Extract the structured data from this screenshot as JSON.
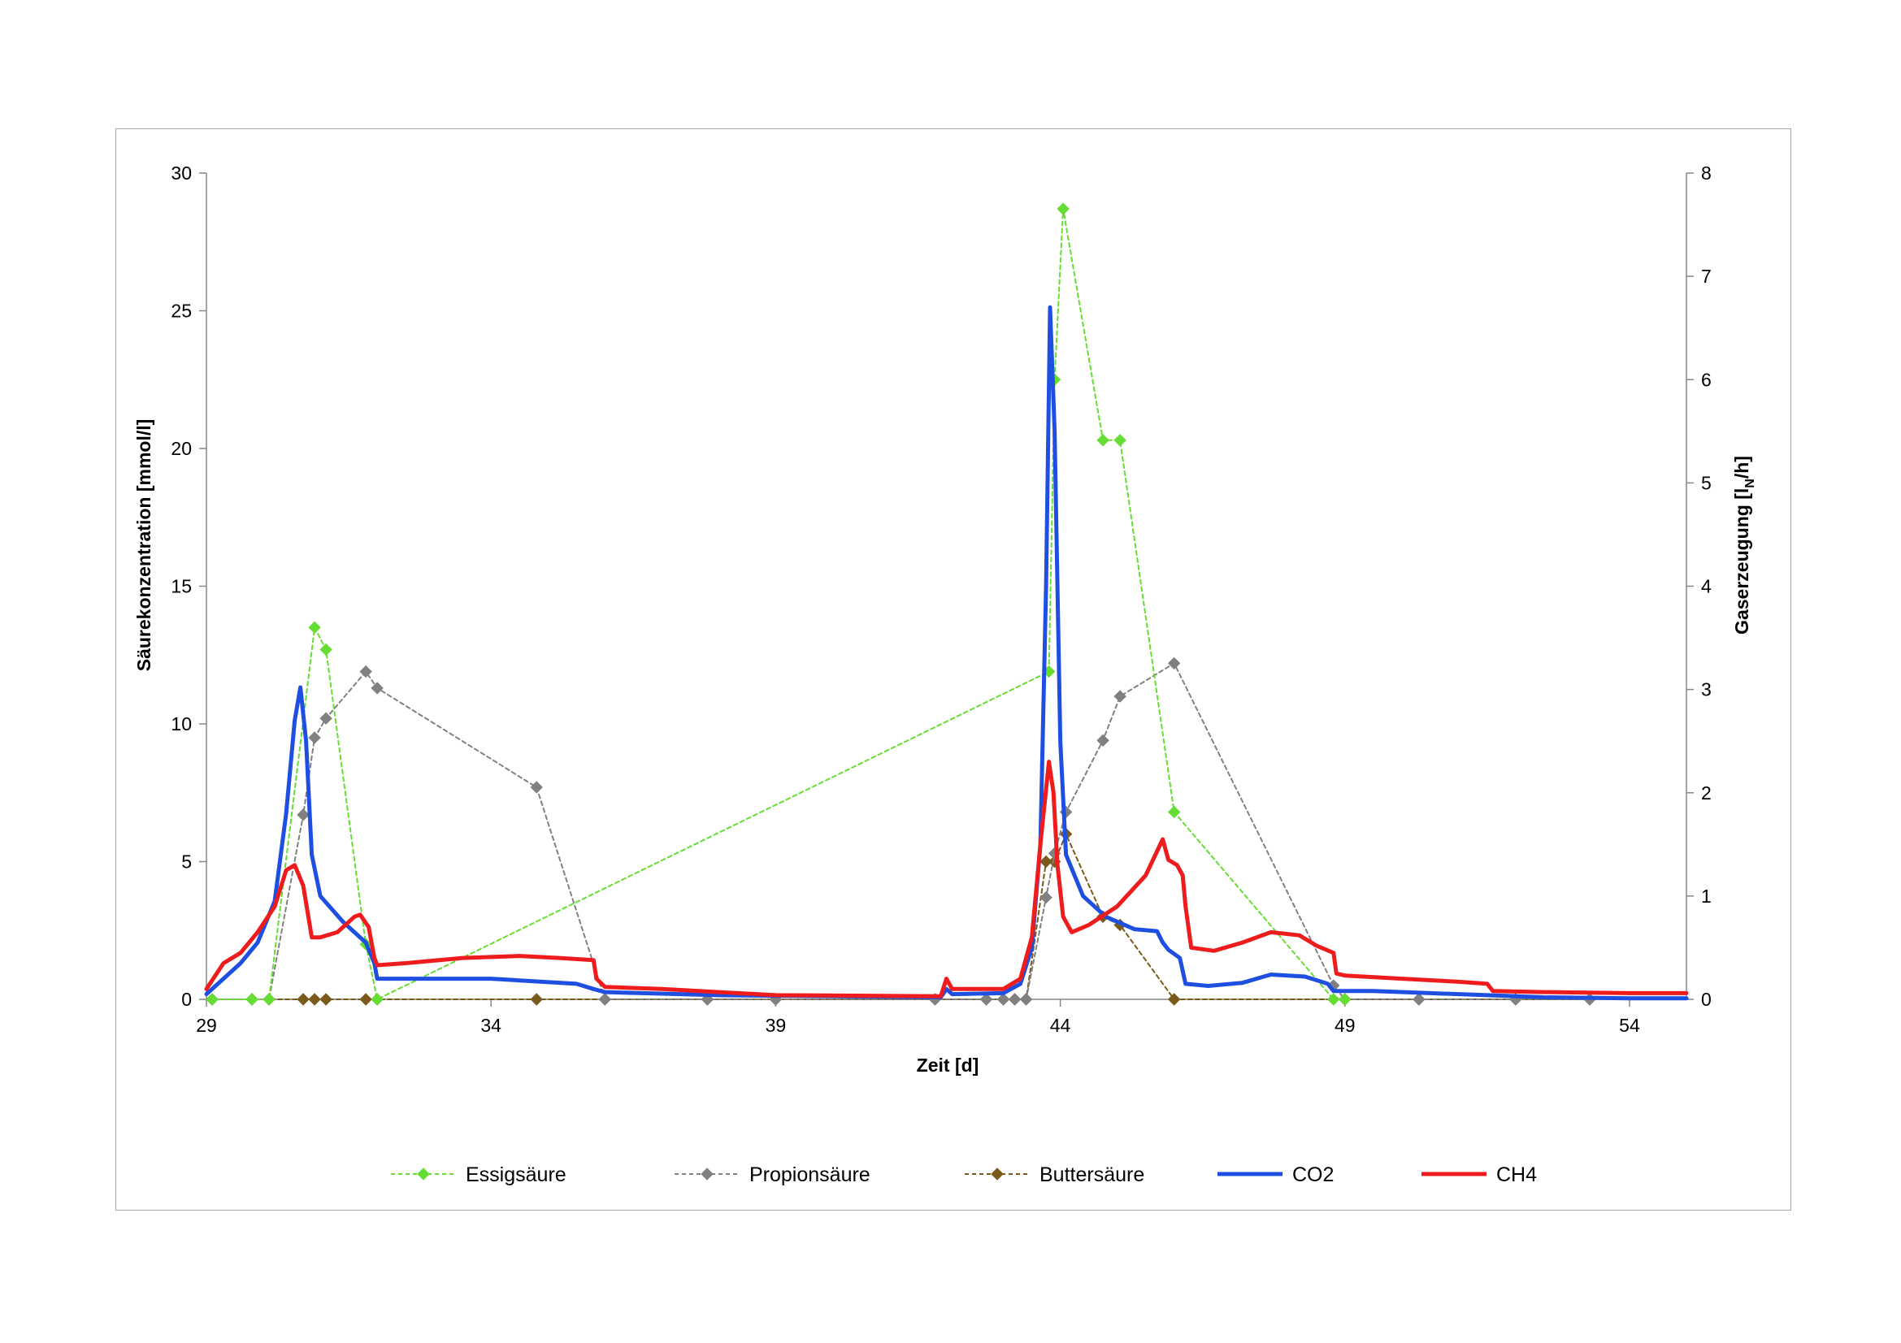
{
  "chart_data": {
    "type": "line",
    "title": "",
    "xlabel": "Zeit [d]",
    "ylabel_left": "Säurekonzentration [mmol/l]",
    "ylabel_right_parts": [
      "Gaserzeugung [l",
      "N",
      "/h]"
    ],
    "xlim": [
      29,
      55
    ],
    "ylim_left": [
      0,
      30
    ],
    "ylim_right": [
      0,
      8
    ],
    "x_ticks": [
      "29",
      "34",
      "39",
      "44",
      "49",
      "54"
    ],
    "y_left_ticks": [
      "0",
      "5",
      "10",
      "15",
      "20",
      "25",
      "30"
    ],
    "y_right_ticks": [
      "0",
      "1",
      "2",
      "3",
      "4",
      "5",
      "6",
      "7",
      "8"
    ],
    "grid": false,
    "legend_position": "bottom",
    "series": [
      {
        "name": "Essigsäure",
        "axis": "left",
        "color": "#66dd33",
        "style": "dashed",
        "marker": "diamond",
        "points": [
          [
            29.1,
            0
          ],
          [
            29.8,
            0
          ],
          [
            30.1,
            0
          ],
          [
            30.9,
            13.5
          ],
          [
            31.1,
            12.7
          ],
          [
            31.8,
            2.0
          ],
          [
            32.0,
            0
          ],
          [
            43.8,
            11.9
          ],
          [
            43.9,
            22.5
          ],
          [
            44.05,
            28.7
          ],
          [
            44.75,
            20.3
          ],
          [
            45.05,
            20.3
          ],
          [
            46.0,
            6.8
          ],
          [
            48.8,
            0
          ],
          [
            49.0,
            0
          ]
        ]
      },
      {
        "name": "Propionsäure",
        "axis": "left",
        "color": "#808080",
        "style": "dashed",
        "marker": "diamond",
        "points": [
          [
            29.1,
            0
          ],
          [
            29.8,
            0
          ],
          [
            30.1,
            0
          ],
          [
            30.7,
            6.7
          ],
          [
            30.9,
            9.5
          ],
          [
            31.1,
            10.2
          ],
          [
            31.8,
            11.9
          ],
          [
            32.0,
            11.3
          ],
          [
            34.8,
            7.7
          ],
          [
            36.0,
            0
          ],
          [
            37.8,
            0
          ],
          [
            39.0,
            0
          ],
          [
            41.8,
            0
          ],
          [
            42.7,
            0
          ],
          [
            43.0,
            0
          ],
          [
            43.2,
            0
          ],
          [
            43.4,
            0
          ],
          [
            43.75,
            3.7
          ],
          [
            43.9,
            5.3
          ],
          [
            44.1,
            6.8
          ],
          [
            44.75,
            9.4
          ],
          [
            45.05,
            11.0
          ],
          [
            46.0,
            12.2
          ],
          [
            48.8,
            0.5
          ],
          [
            49.0,
            0
          ],
          [
            50.3,
            0
          ],
          [
            52.0,
            0
          ],
          [
            53.3,
            0
          ]
        ]
      },
      {
        "name": "Buttersäure",
        "axis": "left",
        "color": "#7a5a1a",
        "style": "dashed",
        "marker": "diamond",
        "points": [
          [
            29.1,
            0
          ],
          [
            29.8,
            0
          ],
          [
            30.1,
            0
          ],
          [
            30.7,
            0
          ],
          [
            30.9,
            0
          ],
          [
            31.1,
            0
          ],
          [
            31.8,
            0
          ],
          [
            32.0,
            0
          ],
          [
            34.8,
            0
          ],
          [
            36.0,
            0
          ],
          [
            37.8,
            0
          ],
          [
            39.0,
            0
          ],
          [
            41.8,
            0
          ],
          [
            42.7,
            0
          ],
          [
            43.0,
            0
          ],
          [
            43.2,
            0
          ],
          [
            43.4,
            0
          ],
          [
            43.75,
            5.0
          ],
          [
            43.9,
            5.0
          ],
          [
            44.1,
            6.0
          ],
          [
            44.75,
            3.0
          ],
          [
            45.05,
            2.7
          ],
          [
            46.0,
            0
          ],
          [
            49.0,
            0
          ],
          [
            50.3,
            0
          ],
          [
            52.0,
            0
          ],
          [
            53.3,
            0
          ]
        ]
      },
      {
        "name": "CO2",
        "axis": "right",
        "color": "#1f4fe0",
        "style": "solid",
        "marker": "none",
        "points": [
          [
            29.0,
            0.05
          ],
          [
            29.3,
            0.2
          ],
          [
            29.6,
            0.35
          ],
          [
            29.9,
            0.55
          ],
          [
            30.2,
            0.95
          ],
          [
            30.4,
            1.8
          ],
          [
            30.55,
            2.7
          ],
          [
            30.65,
            3.02
          ],
          [
            30.75,
            2.5
          ],
          [
            30.85,
            1.4
          ],
          [
            31.0,
            1.0
          ],
          [
            31.4,
            0.75
          ],
          [
            31.8,
            0.55
          ],
          [
            31.95,
            0.35
          ],
          [
            32.0,
            0.2
          ],
          [
            32.5,
            0.2
          ],
          [
            34.0,
            0.2
          ],
          [
            35.5,
            0.15
          ],
          [
            35.8,
            0.1
          ],
          [
            36.0,
            0.07
          ],
          [
            38.0,
            0.04
          ],
          [
            41.9,
            0.02
          ],
          [
            42.0,
            0.1
          ],
          [
            42.1,
            0.05
          ],
          [
            43.0,
            0.06
          ],
          [
            43.3,
            0.15
          ],
          [
            43.5,
            0.5
          ],
          [
            43.65,
            1.5
          ],
          [
            43.75,
            4.0
          ],
          [
            43.82,
            6.7
          ],
          [
            43.9,
            5.5
          ],
          [
            44.0,
            2.5
          ],
          [
            44.1,
            1.4
          ],
          [
            44.4,
            1.0
          ],
          [
            44.8,
            0.8
          ],
          [
            45.3,
            0.68
          ],
          [
            45.7,
            0.66
          ],
          [
            45.8,
            0.55
          ],
          [
            45.9,
            0.48
          ],
          [
            46.1,
            0.4
          ],
          [
            46.2,
            0.15
          ],
          [
            46.6,
            0.13
          ],
          [
            47.2,
            0.16
          ],
          [
            47.7,
            0.24
          ],
          [
            48.3,
            0.22
          ],
          [
            48.7,
            0.15
          ],
          [
            48.8,
            0.08
          ],
          [
            49.5,
            0.08
          ],
          [
            50.5,
            0.06
          ],
          [
            51.5,
            0.04
          ],
          [
            52.5,
            0.02
          ],
          [
            54.0,
            0.01
          ],
          [
            55.0,
            0.01
          ]
        ]
      },
      {
        "name": "CH4",
        "axis": "right",
        "color": "#ee1c1c",
        "style": "solid",
        "marker": "none",
        "points": [
          [
            29.0,
            0.1
          ],
          [
            29.3,
            0.35
          ],
          [
            29.6,
            0.45
          ],
          [
            29.9,
            0.65
          ],
          [
            30.2,
            0.9
          ],
          [
            30.4,
            1.25
          ],
          [
            30.55,
            1.3
          ],
          [
            30.7,
            1.1
          ],
          [
            30.85,
            0.6
          ],
          [
            31.0,
            0.6
          ],
          [
            31.3,
            0.65
          ],
          [
            31.6,
            0.8
          ],
          [
            31.7,
            0.82
          ],
          [
            31.85,
            0.7
          ],
          [
            31.95,
            0.4
          ],
          [
            32.0,
            0.33
          ],
          [
            32.5,
            0.35
          ],
          [
            33.5,
            0.4
          ],
          [
            34.5,
            0.42
          ],
          [
            35.2,
            0.4
          ],
          [
            35.8,
            0.38
          ],
          [
            35.85,
            0.2
          ],
          [
            36.0,
            0.12
          ],
          [
            37.0,
            0.1
          ],
          [
            38.0,
            0.07
          ],
          [
            39.0,
            0.04
          ],
          [
            41.9,
            0.03
          ],
          [
            42.0,
            0.2
          ],
          [
            42.1,
            0.1
          ],
          [
            43.0,
            0.1
          ],
          [
            43.3,
            0.2
          ],
          [
            43.5,
            0.6
          ],
          [
            43.65,
            1.5
          ],
          [
            43.8,
            2.3
          ],
          [
            43.88,
            2.0
          ],
          [
            43.95,
            1.3
          ],
          [
            44.05,
            0.8
          ],
          [
            44.2,
            0.65
          ],
          [
            44.5,
            0.72
          ],
          [
            45.0,
            0.9
          ],
          [
            45.5,
            1.2
          ],
          [
            45.8,
            1.55
          ],
          [
            45.9,
            1.35
          ],
          [
            46.05,
            1.3
          ],
          [
            46.15,
            1.2
          ],
          [
            46.2,
            0.9
          ],
          [
            46.3,
            0.5
          ],
          [
            46.7,
            0.47
          ],
          [
            47.2,
            0.55
          ],
          [
            47.7,
            0.65
          ],
          [
            48.2,
            0.62
          ],
          [
            48.5,
            0.52
          ],
          [
            48.8,
            0.45
          ],
          [
            48.85,
            0.25
          ],
          [
            49.0,
            0.23
          ],
          [
            50.0,
            0.2
          ],
          [
            51.0,
            0.17
          ],
          [
            51.5,
            0.15
          ],
          [
            51.6,
            0.08
          ],
          [
            52.5,
            0.07
          ],
          [
            54.0,
            0.06
          ],
          [
            55.0,
            0.06
          ]
        ]
      }
    ]
  }
}
